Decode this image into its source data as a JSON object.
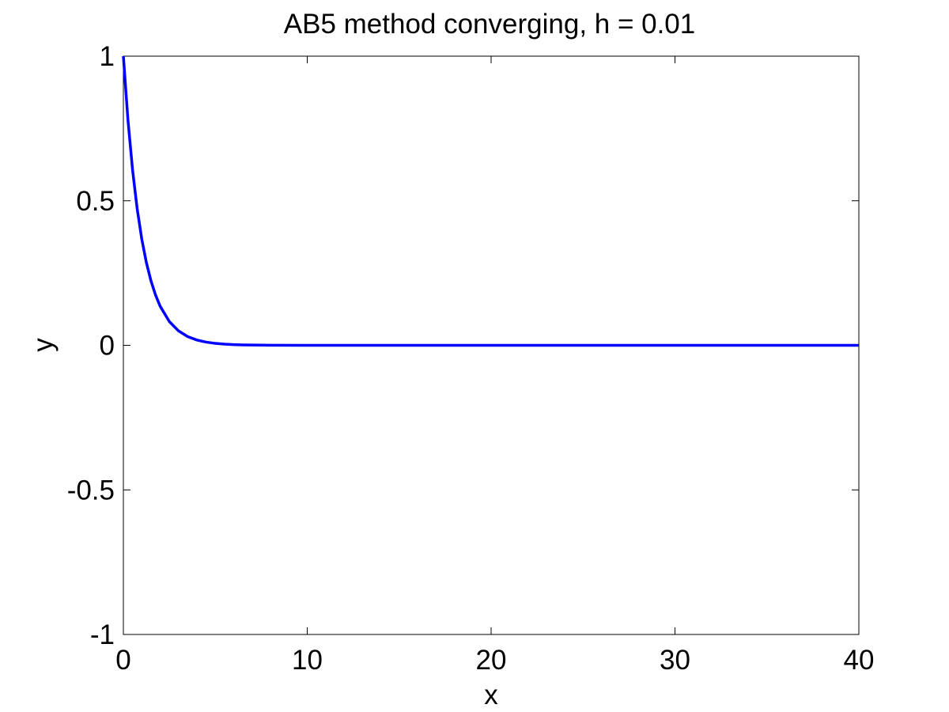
{
  "chart_data": {
    "type": "line",
    "title": "AB5 method converging, h = 0.01",
    "xlabel": "x",
    "ylabel": "y",
    "xlim": [
      0,
      40
    ],
    "ylim": [
      -1,
      1
    ],
    "x_ticks": [
      "0",
      "10",
      "20",
      "30",
      "40"
    ],
    "y_ticks": [
      "-1",
      "-0.5",
      "0",
      "0.5",
      "1"
    ],
    "grid": false,
    "legend": "none",
    "series": [
      {
        "color": "#0000ff",
        "x": [
          0,
          0.25,
          0.5,
          0.75,
          1,
          1.25,
          1.5,
          1.75,
          2,
          2.5,
          3,
          3.5,
          4,
          4.5,
          5,
          5.5,
          6,
          6.5,
          7,
          8,
          10,
          15,
          20,
          25,
          30,
          35,
          40
        ],
        "y": [
          1,
          0.7788,
          0.6065,
          0.4724,
          0.3679,
          0.2865,
          0.2231,
          0.1738,
          0.1353,
          0.0821,
          0.0498,
          0.0302,
          0.0183,
          0.0111,
          0.0067,
          0.0041,
          0.0025,
          0.0015,
          0.0009,
          0.0003,
          0,
          0,
          0,
          0,
          0,
          0,
          0
        ]
      }
    ]
  }
}
